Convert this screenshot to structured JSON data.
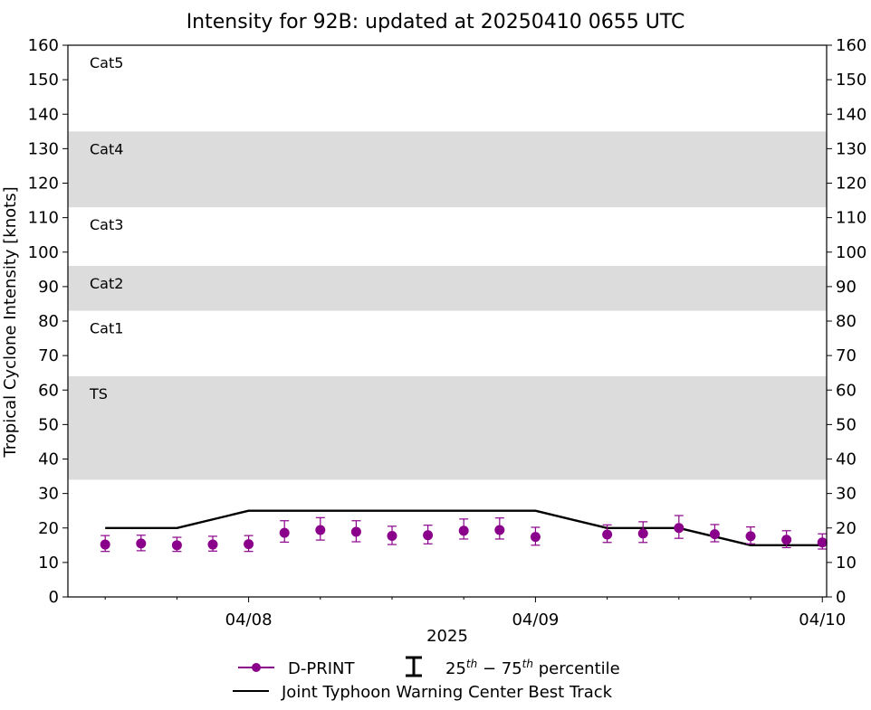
{
  "chart_data": {
    "type": "line",
    "title": "Intensity for 92B: updated at 20250410 0655 UTC",
    "ylabel": "Tropical Cyclone Intensity [knots]",
    "xlabel": "2025",
    "ylim": [
      0,
      160
    ],
    "xlim_hours": [
      -12.6,
      40.3
    ],
    "y_ticks": [
      0,
      10,
      20,
      30,
      40,
      50,
      60,
      70,
      80,
      90,
      100,
      110,
      120,
      130,
      140,
      150,
      160
    ],
    "x_major_ticks": [
      {
        "hour": 0,
        "label": "04/08"
      },
      {
        "hour": 20,
        "label": "04/09"
      },
      {
        "hour": 40,
        "label": "04/10"
      }
    ],
    "x_minor_ticks_hours": [
      -10,
      -5,
      5,
      10,
      15,
      25,
      30,
      35
    ],
    "category_bands": [
      {
        "label": "Cat5",
        "min": 135,
        "max": 160,
        "shaded": false
      },
      {
        "label": "Cat4",
        "min": 113,
        "max": 135,
        "shaded": true
      },
      {
        "label": "Cat3",
        "min": 96,
        "max": 113,
        "shaded": false
      },
      {
        "label": "Cat2",
        "min": 83,
        "max": 96,
        "shaded": true
      },
      {
        "label": "Cat1",
        "min": 64,
        "max": 83,
        "shaded": false
      },
      {
        "label": "TS",
        "min": 34,
        "max": 64,
        "shaded": true
      }
    ],
    "series": [
      {
        "name": "D-PRINT",
        "kind": "points_with_errorbars",
        "color": "#8b008b",
        "x_hours": [
          -10,
          -7.5,
          -5,
          -2.5,
          0,
          2.5,
          5,
          7.5,
          10,
          12.5,
          15,
          17.5,
          20,
          25,
          27.5,
          30,
          32.5,
          35,
          37.5,
          40
        ],
        "values": [
          15.2,
          15.5,
          15.0,
          15.2,
          15.3,
          18.6,
          19.4,
          18.9,
          17.7,
          17.9,
          19.2,
          19.4,
          17.4,
          18.1,
          18.4,
          20.0,
          18.2,
          17.6,
          16.6,
          15.8
        ],
        "p25": [
          13.2,
          13.4,
          13.2,
          13.3,
          13.2,
          15.9,
          16.5,
          16.0,
          15.2,
          15.4,
          16.8,
          16.8,
          15.0,
          15.8,
          15.8,
          17.0,
          16.0,
          15.4,
          14.3,
          13.9
        ],
        "p75": [
          17.8,
          17.9,
          17.3,
          17.6,
          17.8,
          22.1,
          23.0,
          22.1,
          20.5,
          20.8,
          22.6,
          22.9,
          20.2,
          20.9,
          21.8,
          23.6,
          21.0,
          20.3,
          19.2,
          18.3
        ]
      },
      {
        "name": "Joint Typhoon Warning Center Best Track",
        "kind": "line",
        "color": "#000000",
        "x_hours": [
          -10,
          -5,
          0,
          20,
          25,
          30,
          35,
          40
        ],
        "values": [
          20,
          20,
          25,
          25,
          20,
          20,
          15,
          15
        ]
      }
    ],
    "legend": {
      "placement": "bottom-center",
      "dprint_label": "D-PRINT",
      "percentile_label_base1": "25",
      "percentile_label_sup1": "th",
      "percentile_label_mid": " − 75",
      "percentile_label_sup2": "th",
      "percentile_label_tail": " percentile",
      "best_track_label": "Joint Typhoon Warning Center Best Track"
    },
    "colors": {
      "band_fill": "#dcdcdc",
      "dprint": "#8b008b",
      "best_track": "#000000"
    }
  }
}
